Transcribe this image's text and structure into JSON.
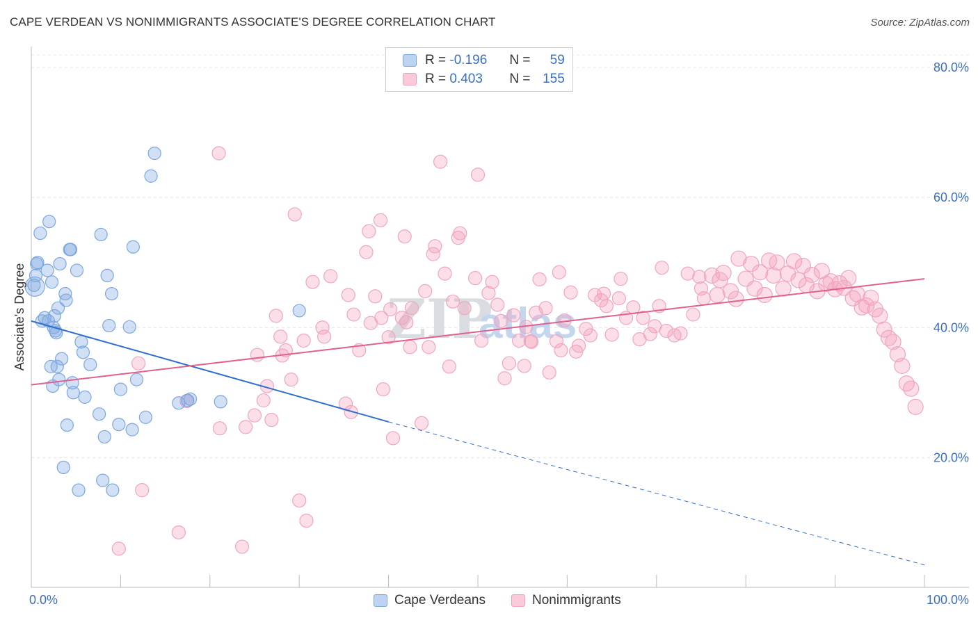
{
  "title": "CAPE VERDEAN VS NONIMMIGRANTS ASSOCIATE'S DEGREE CORRELATION CHART",
  "source": "Source: ZipAtlas.com",
  "watermark": {
    "zip": "ZIP",
    "atlas": "atlas"
  },
  "legend": {
    "r_label": "R =",
    "n_label": "N =",
    "series1": {
      "r": "-0.196",
      "n": "59"
    },
    "series2": {
      "r": "0.403",
      "n": "155"
    }
  },
  "bottom_legend": {
    "series1": "Cape Verdeans",
    "series2": "Nonimmigrants"
  },
  "chart_data": {
    "type": "scatter",
    "title": "CAPE VERDEAN VS NONIMMIGRANTS ASSOCIATE'S DEGREE CORRELATION CHART",
    "xlabel": "",
    "ylabel": "Associate's Degree",
    "xlim": [
      0,
      100
    ],
    "ylim": [
      0,
      85
    ],
    "x_tick_labels": [
      "0.0%",
      "100.0%"
    ],
    "y_ticks": [
      20,
      40,
      60,
      80
    ],
    "y_tick_labels": [
      "20.0%",
      "40.0%",
      "60.0%",
      "80.0%"
    ],
    "grid": "horizontal dashed",
    "legend_position": "top-center",
    "colors": {
      "series1": "#7ba7e0",
      "series2": "#f4a0ba",
      "line1": "#2f6fce",
      "line2": "#e0608e",
      "tick": "#3a6fc4"
    },
    "series": [
      {
        "name": "Cape Verdeans",
        "r": -0.196,
        "n": 59,
        "trend": {
          "x": [
            0,
            40
          ],
          "y": [
            41.0,
            25.5
          ],
          "dashed_to": [
            100,
            3.5
          ]
        },
        "points": [
          [
            0.3,
            46.5
          ],
          [
            0.5,
            48
          ],
          [
            0.6,
            49.8
          ],
          [
            0.7,
            50
          ],
          [
            1.0,
            54.5
          ],
          [
            1.2,
            41
          ],
          [
            1.5,
            41.5
          ],
          [
            1.8,
            48.8
          ],
          [
            1.9,
            41
          ],
          [
            2.0,
            56.3
          ],
          [
            2.2,
            34
          ],
          [
            2.3,
            47
          ],
          [
            2.4,
            31
          ],
          [
            2.5,
            40
          ],
          [
            2.6,
            41.8
          ],
          [
            2.7,
            39.5
          ],
          [
            2.8,
            39.2
          ],
          [
            2.9,
            34
          ],
          [
            3.0,
            43
          ],
          [
            3.1,
            32
          ],
          [
            3.2,
            49.8
          ],
          [
            3.4,
            35.2
          ],
          [
            3.6,
            18.5
          ],
          [
            3.8,
            45.2
          ],
          [
            3.9,
            44.2
          ],
          [
            4.0,
            25
          ],
          [
            4.3,
            52
          ],
          [
            4.4,
            52
          ],
          [
            4.6,
            31.5
          ],
          [
            4.7,
            30
          ],
          [
            5.1,
            48.8
          ],
          [
            5.3,
            15
          ],
          [
            5.6,
            37.8
          ],
          [
            5.8,
            36.2
          ],
          [
            6.0,
            29.3
          ],
          [
            6.6,
            34.3
          ],
          [
            7.6,
            26.7
          ],
          [
            7.8,
            54.3
          ],
          [
            8.0,
            16.5
          ],
          [
            8.2,
            23.2
          ],
          [
            8.5,
            48
          ],
          [
            8.7,
            40.3
          ],
          [
            9.0,
            45.2
          ],
          [
            9.1,
            15
          ],
          [
            9.8,
            25.1
          ],
          [
            10.0,
            30.5
          ],
          [
            11.0,
            40.1
          ],
          [
            11.3,
            24.3
          ],
          [
            11.4,
            52.4
          ],
          [
            11.8,
            32
          ],
          [
            12.8,
            26.2
          ],
          [
            13.4,
            63.3
          ],
          [
            13.8,
            66.8
          ],
          [
            16.5,
            28.4
          ],
          [
            17.5,
            28.8
          ],
          [
            17.8,
            29
          ],
          [
            21.2,
            28.6
          ],
          [
            30.0,
            42.6
          ],
          [
            0.4,
            46.3
          ]
        ]
      },
      {
        "name": "Nonimmigrants",
        "r": 0.403,
        "n": 155,
        "trend": {
          "x": [
            0,
            100
          ],
          "y": [
            31.2,
            47.5
          ]
        },
        "points": [
          [
            9.8,
            6
          ],
          [
            12.0,
            34.5
          ],
          [
            12.4,
            15
          ],
          [
            16.5,
            8.5
          ],
          [
            17.4,
            28.7
          ],
          [
            21.0,
            66.8
          ],
          [
            21.1,
            24.5
          ],
          [
            23.6,
            6.3
          ],
          [
            24.0,
            24.7
          ],
          [
            25.0,
            26.5
          ],
          [
            25.3,
            35.8
          ],
          [
            26.0,
            28.8
          ],
          [
            26.4,
            31
          ],
          [
            26.9,
            25.8
          ],
          [
            27.4,
            41.8
          ],
          [
            27.9,
            38.6
          ],
          [
            28.5,
            36.5
          ],
          [
            29.1,
            32
          ],
          [
            29.5,
            57.4
          ],
          [
            30.0,
            13.4
          ],
          [
            30.5,
            38
          ],
          [
            30.8,
            10.3
          ],
          [
            31.5,
            47
          ],
          [
            32.6,
            40
          ],
          [
            32.8,
            38.6
          ],
          [
            35.2,
            28.3
          ],
          [
            35.5,
            45
          ],
          [
            35.8,
            27
          ],
          [
            36.1,
            42
          ],
          [
            36.7,
            36.5
          ],
          [
            37.5,
            51.6
          ],
          [
            37.8,
            54.8
          ],
          [
            38.0,
            40.7
          ],
          [
            38.5,
            44.8
          ],
          [
            39.1,
            56.5
          ],
          [
            39.2,
            41.5
          ],
          [
            39.4,
            30.5
          ],
          [
            40.0,
            38.5
          ],
          [
            40.2,
            42.8
          ],
          [
            40.5,
            23
          ],
          [
            41.5,
            41.5
          ],
          [
            41.8,
            54
          ],
          [
            42.4,
            37
          ],
          [
            42.6,
            43
          ],
          [
            43.7,
            25.3
          ],
          [
            44.1,
            45.6
          ],
          [
            44.5,
            37
          ],
          [
            45.0,
            51.3
          ],
          [
            45.2,
            52.5
          ],
          [
            45.8,
            65.5
          ],
          [
            46.3,
            48.3
          ],
          [
            46.8,
            34
          ],
          [
            47.2,
            44
          ],
          [
            47.8,
            53.8
          ],
          [
            48.0,
            54.5
          ],
          [
            48.5,
            43
          ],
          [
            49.7,
            47.6
          ],
          [
            50.4,
            38
          ],
          [
            51.2,
            45.3
          ],
          [
            51.6,
            47
          ],
          [
            52.2,
            43.5
          ],
          [
            53.0,
            32.2
          ],
          [
            53.5,
            34.5
          ],
          [
            54.0,
            41.9
          ],
          [
            54.6,
            38
          ],
          [
            55.2,
            34.1
          ],
          [
            55.9,
            37.9
          ],
          [
            56.0,
            37.8
          ],
          [
            56.5,
            42.3
          ],
          [
            56.9,
            47.4
          ],
          [
            57.6,
            43
          ],
          [
            58.0,
            33.1
          ],
          [
            59.1,
            48.5
          ],
          [
            59.3,
            36.5
          ],
          [
            59.7,
            41.1
          ],
          [
            60.4,
            45.4
          ],
          [
            61.0,
            36.3
          ],
          [
            61.3,
            37.2
          ],
          [
            62.1,
            39.8
          ],
          [
            62.6,
            38.8
          ],
          [
            63.1,
            45
          ],
          [
            63.8,
            44.2
          ],
          [
            64.1,
            45.2
          ],
          [
            64.4,
            43.3
          ],
          [
            65.0,
            38.9
          ],
          [
            65.8,
            44.5
          ],
          [
            66.6,
            41.5
          ],
          [
            67.4,
            43.1
          ],
          [
            68.1,
            38.2
          ],
          [
            68.5,
            41.5
          ],
          [
            69.3,
            39
          ],
          [
            69.8,
            40.2
          ],
          [
            70.3,
            43.3
          ],
          [
            70.6,
            49.2
          ],
          [
            71.1,
            39.5
          ],
          [
            72.0,
            38.8
          ],
          [
            72.7,
            39.1
          ],
          [
            73.5,
            48.3
          ],
          [
            74.1,
            42
          ],
          [
            75.0,
            46
          ],
          [
            75.3,
            44.5
          ],
          [
            76.2,
            48
          ],
          [
            76.8,
            45
          ],
          [
            77.1,
            47.3
          ],
          [
            77.5,
            48.4
          ],
          [
            78.3,
            45.6
          ],
          [
            78.9,
            44.4
          ],
          [
            79.2,
            50.6
          ],
          [
            80.0,
            47.5
          ],
          [
            80.6,
            49.8
          ],
          [
            81.0,
            46
          ],
          [
            81.6,
            48.5
          ],
          [
            82.1,
            45
          ],
          [
            82.6,
            50.3
          ],
          [
            83.1,
            48
          ],
          [
            83.5,
            50
          ],
          [
            84.2,
            46
          ],
          [
            84.7,
            48.3
          ],
          [
            85.4,
            50.2
          ],
          [
            85.9,
            47.3
          ],
          [
            86.4,
            49.5
          ],
          [
            86.8,
            46.5
          ],
          [
            87.4,
            48.1
          ],
          [
            88.0,
            45.6
          ],
          [
            88.5,
            48.7
          ],
          [
            89.0,
            46.7
          ],
          [
            89.5,
            47.1
          ],
          [
            90.0,
            45.9
          ],
          [
            90.5,
            46.8
          ],
          [
            91.0,
            46.1
          ],
          [
            91.5,
            47.6
          ],
          [
            92.0,
            44.5
          ],
          [
            92.5,
            45.1
          ],
          [
            93.0,
            43.1
          ],
          [
            93.5,
            43.4
          ],
          [
            94.0,
            44.6
          ],
          [
            94.5,
            42.8
          ],
          [
            95.0,
            41.8
          ],
          [
            95.5,
            39.7
          ],
          [
            96.0,
            38.4
          ],
          [
            96.5,
            37.8
          ],
          [
            97.0,
            35.9
          ],
          [
            97.5,
            34.1
          ],
          [
            98.0,
            31.4
          ],
          [
            98.5,
            30.6
          ],
          [
            99.0,
            27.8
          ],
          [
            50.0,
            63.5
          ],
          [
            28.1,
            35.7
          ],
          [
            33.5,
            47.9
          ],
          [
            42.0,
            40.8
          ],
          [
            52.6,
            41
          ],
          [
            58.8,
            37.9
          ],
          [
            66.0,
            47.5
          ],
          [
            74.8,
            47.8
          ],
          [
            55.4,
            40.1
          ]
        ]
      }
    ]
  }
}
